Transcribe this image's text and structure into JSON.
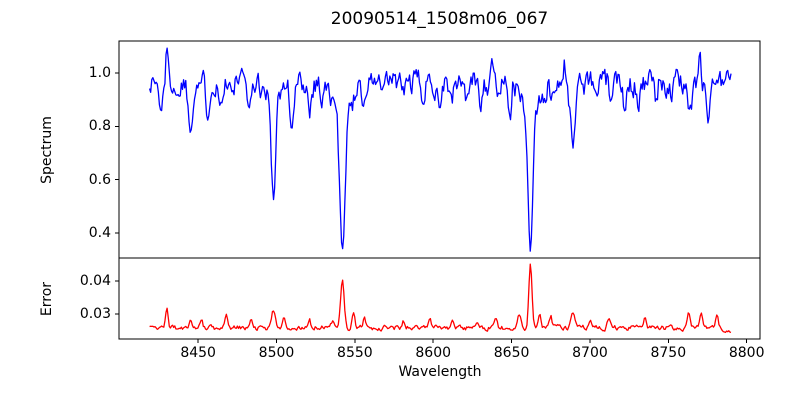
{
  "figure": {
    "title": "20090514_1508m06_067",
    "xlabel": "Wavelength",
    "background_color": "#ffffff",
    "frame_color": "#000000",
    "text_color": "#000000"
  },
  "chart_data": [
    {
      "type": "line",
      "panel": "spectrum",
      "title": "20090514_1508m06_067",
      "ylabel": "Spectrum",
      "line_color": "#0000ff",
      "legend": "none",
      "grid": false,
      "xlim": [
        8399.5,
        8808.5
      ],
      "ylim": [
        0.306,
        1.12
      ],
      "ytick_values": [
        1.0,
        0.8,
        0.6,
        0.4
      ],
      "ytick_labels": [
        "1.0",
        "0.8",
        "0.6",
        "0.4"
      ],
      "x_start": 8419,
      "x_end": 8790,
      "x_step": 0.7,
      "continuum": 0.97,
      "noise_sigma": 0.018,
      "absorption_lines": [
        [
          8426,
          0.85,
          1.0
        ],
        [
          8437,
          0.9,
          0.9
        ],
        [
          8445,
          0.79,
          1.2
        ],
        [
          8456,
          0.86,
          1.0
        ],
        [
          8464,
          0.87,
          1.0
        ],
        [
          8472,
          0.9,
          0.9
        ],
        [
          8483,
          0.87,
          1.0
        ],
        [
          8493,
          0.9,
          0.8
        ],
        [
          8498,
          0.545,
          1.5
        ],
        [
          8498,
          0.9,
          4.5
        ],
        [
          8510,
          0.79,
          1.3
        ],
        [
          8521,
          0.86,
          1.0
        ],
        [
          8529,
          0.91,
          0.9
        ],
        [
          8536,
          0.9,
          0.9
        ],
        [
          8542,
          0.345,
          1.9
        ],
        [
          8542,
          0.82,
          5.5
        ],
        [
          8556,
          0.87,
          1.1
        ],
        [
          8568,
          0.91,
          0.9
        ],
        [
          8581,
          0.92,
          0.9
        ],
        [
          8594,
          0.89,
          1.0
        ],
        [
          8604,
          0.89,
          1.0
        ],
        [
          8612,
          0.885,
          1.0
        ],
        [
          8621,
          0.9,
          0.9
        ],
        [
          8630,
          0.9,
          0.9
        ],
        [
          8641,
          0.91,
          0.9
        ],
        [
          8649,
          0.88,
          1.0
        ],
        [
          8662,
          0.336,
          1.7
        ],
        [
          8662,
          0.85,
          5.5
        ],
        [
          8675,
          0.9,
          0.9
        ],
        [
          8689,
          0.74,
          1.6
        ],
        [
          8704,
          0.9,
          0.9
        ],
        [
          8714,
          0.875,
          1.0
        ],
        [
          8722,
          0.9,
          0.9
        ],
        [
          8731,
          0.895,
          1.0
        ],
        [
          8742,
          0.89,
          1.0
        ],
        [
          8752,
          0.91,
          0.9
        ],
        [
          8764,
          0.855,
          1.1
        ],
        [
          8775,
          0.82,
          1.1
        ]
      ],
      "upward_spikes": [
        [
          8430,
          1.09,
          0.7
        ],
        [
          8553,
          1.04,
          0.6
        ],
        [
          8637,
          1.05,
          0.7
        ],
        [
          8684,
          1.04,
          0.6
        ],
        [
          8770,
          1.085,
          0.7
        ]
      ]
    },
    {
      "type": "line",
      "panel": "error",
      "ylabel": "Error",
      "xlabel": "Wavelength",
      "line_color": "#ff0000",
      "legend": "none",
      "grid": false,
      "xlim": [
        8399.5,
        8808.5
      ],
      "ylim": [
        0.0224,
        0.047
      ],
      "ytick_values": [
        0.04,
        0.03
      ],
      "ytick_labels": [
        "0.04",
        "0.03"
      ],
      "xtick_values": [
        8450,
        8500,
        8550,
        8600,
        8650,
        8700,
        8750,
        8800
      ],
      "xtick_labels": [
        "8450",
        "8500",
        "8550",
        "8600",
        "8650",
        "8700",
        "8750",
        "8800"
      ],
      "x_start": 8419,
      "x_end": 8790,
      "x_step": 0.7,
      "baseline": 0.0258,
      "noise_sigma": 0.0004,
      "error_peaks": [
        [
          8430,
          0.0315,
          0.9
        ],
        [
          8445,
          0.0285,
          0.8
        ],
        [
          8452,
          0.0282,
          0.8
        ],
        [
          8468,
          0.0295,
          1.0
        ],
        [
          8484,
          0.0288,
          0.8
        ],
        [
          8498,
          0.0312,
          1.2
        ],
        [
          8505,
          0.0292,
          0.9
        ],
        [
          8521,
          0.0284,
          0.8
        ],
        [
          8536,
          0.0285,
          0.8
        ],
        [
          8542,
          0.0402,
          1.1
        ],
        [
          8549,
          0.0298,
          0.9
        ],
        [
          8556,
          0.0288,
          0.8
        ],
        [
          8581,
          0.0278,
          0.8
        ],
        [
          8598,
          0.0282,
          0.8
        ],
        [
          8612,
          0.0284,
          0.8
        ],
        [
          8628,
          0.028,
          0.8
        ],
        [
          8640,
          0.0288,
          0.8
        ],
        [
          8655,
          0.0296,
          1.0
        ],
        [
          8662,
          0.0453,
          1.0
        ],
        [
          8668,
          0.03,
          0.8
        ],
        [
          8675,
          0.029,
          0.8
        ],
        [
          8689,
          0.0308,
          1.1
        ],
        [
          8700,
          0.0283,
          0.8
        ],
        [
          8712,
          0.0286,
          0.8
        ],
        [
          8735,
          0.0288,
          0.8
        ],
        [
          8763,
          0.0306,
          1.1
        ],
        [
          8771,
          0.03,
          0.9
        ],
        [
          8781,
          0.0307,
          0.9
        ]
      ]
    }
  ]
}
